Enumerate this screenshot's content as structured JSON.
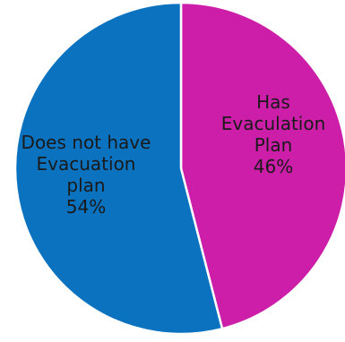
{
  "chart_data": {
    "type": "pie",
    "title": "",
    "slices": [
      {
        "label_lines": [
          "Has",
          "Evaculation",
          "Plan"
        ],
        "percent_label": "46%",
        "value": 46,
        "color": "#cc1ea8"
      },
      {
        "label_lines": [
          "Does not have",
          "Evacuation",
          "plan"
        ],
        "percent_label": "54%",
        "value": 54,
        "color": "#0b72bf"
      }
    ]
  }
}
